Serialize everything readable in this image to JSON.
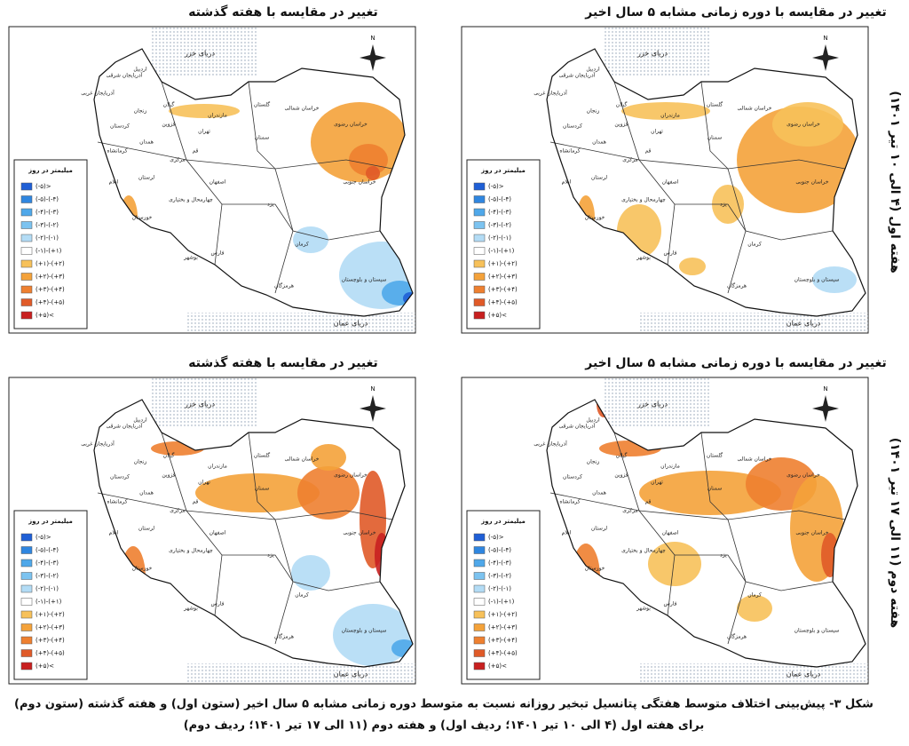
{
  "figure": {
    "panels": [
      {
        "title": "تغییر در مقایسه با هفته گذشته"
      },
      {
        "title": "تغییر در مقایسه با دوره زمانی مشابه ۵ سال اخیر"
      },
      {
        "title": "تغییر در مقایسه با هفته گذشته"
      },
      {
        "title": "تغییر در مقایسه با دوره زمانی مشابه ۵ سال اخیر"
      }
    ],
    "legend_title": "میلیمتر در روز",
    "legend": [
      {
        "label": "(-۵)>",
        "color": "#1f5fd6"
      },
      {
        "label": "(-۵)-(-۴)",
        "color": "#2f86e0"
      },
      {
        "label": "(-۴)-(-۳)",
        "color": "#4fa8ea"
      },
      {
        "label": "(-۳)-(-۲)",
        "color": "#7cc3f0"
      },
      {
        "label": "(-۲)-(-۱)",
        "color": "#b3dcf5"
      },
      {
        "label": "(-۱)-(+۱)",
        "color": "#ffffff"
      },
      {
        "label": "(+۱)-(+۲)",
        "color": "#f7c15a"
      },
      {
        "label": "(+۲)-(+۳)",
        "color": "#f4a23a"
      },
      {
        "label": "(+۳)-(+۴)",
        "color": "#ee8030"
      },
      {
        "label": "(+۴)-(+۵)",
        "color": "#e05a28"
      },
      {
        "label": "(+۵)<",
        "color": "#c82020"
      }
    ],
    "north": "N",
    "seas": [
      "دریای خزر",
      "دریای عمان"
    ],
    "provinces": [
      "آذربایجان شرقی",
      "آذربایجان غربی",
      "اردبیل",
      "زنجان",
      "گیلان",
      "قزوین",
      "مازندران",
      "گلستان",
      "خراسان شمالی",
      "خراسان رضوی",
      "خراسان جنوبی",
      "سمنان",
      "تهران",
      "قم",
      "مرکزی",
      "همدان",
      "کردستان",
      "کرمانشاه",
      "لرستان",
      "ایلام",
      "خوزستان",
      "اصفهان",
      "چهارمحال و بختیاری",
      "یزد",
      "کرمان",
      "فارس",
      "بوشهر",
      "هرمزگان",
      "سیستان و بلوچستان"
    ],
    "row_labels": [
      "هفته اول (۴ الی ۱۰ تیر ۱۴۰۱)",
      "هفته دوم (۱۱ الی ۱۷ تیر ۱۴۰۱)"
    ],
    "caption": [
      "شکل ۳- پیش‌بینی اختلاف متوسط هفتگی پتانسیل تبخیر روزانه نسبت به متوسط دوره زمانی مشابه ۵ سال اخیر (ستون اول) و هفته گذشته (ستون دوم)",
      "برای هفته اول (۴ الی ۱۰ تیر ۱۴۰۱؛ ردیف اول) و هفته دوم (۱۱ الی ۱۷ تیر ۱۴۰۱؛ ردیف دوم)"
    ]
  }
}
